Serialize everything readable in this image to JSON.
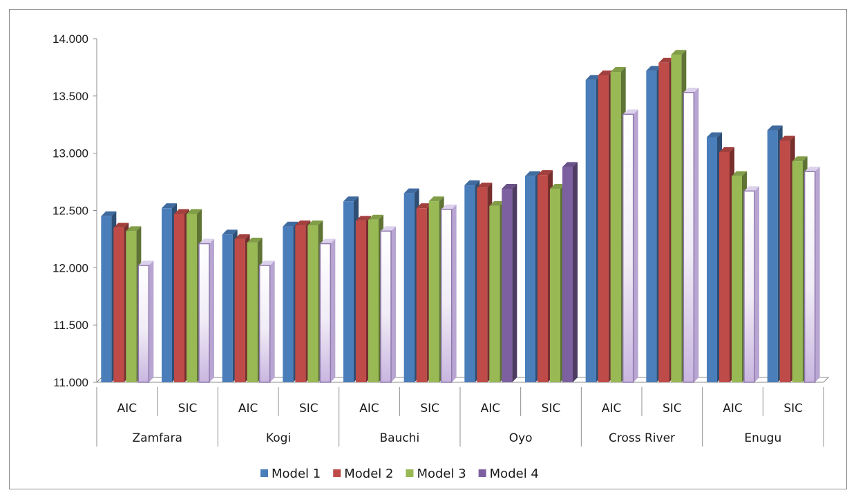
{
  "chart_data": {
    "type": "bar",
    "categories": [
      {
        "state": "Zamfara",
        "criterion": "AIC"
      },
      {
        "state": "Zamfara",
        "criterion": "SIC"
      },
      {
        "state": "Kogi",
        "criterion": "AIC"
      },
      {
        "state": "Kogi",
        "criterion": "SIC"
      },
      {
        "state": "Bauchi",
        "criterion": "AIC"
      },
      {
        "state": "Bauchi",
        "criterion": "SIC"
      },
      {
        "state": "Oyo",
        "criterion": "AIC"
      },
      {
        "state": "Oyo",
        "criterion": "SIC"
      },
      {
        "state": "Cross River",
        "criterion": "AIC"
      },
      {
        "state": "Cross River",
        "criterion": "SIC"
      },
      {
        "state": "Enugu",
        "criterion": "AIC"
      },
      {
        "state": "Enugu",
        "criterion": "SIC"
      }
    ],
    "groups": [
      "Zamfara",
      "Kogi",
      "Bauchi",
      "Oyo",
      "Cross River",
      "Enugu"
    ],
    "series": [
      {
        "name": "Model 1",
        "color": "#4a7ebb",
        "values": [
          12.45,
          12.52,
          12.29,
          12.36,
          12.58,
          12.65,
          12.72,
          12.8,
          13.64,
          13.72,
          13.14,
          13.2
        ]
      },
      {
        "name": "Model 2",
        "color": "#be4b48",
        "values": [
          12.35,
          12.47,
          12.25,
          12.37,
          12.41,
          12.52,
          12.7,
          12.81,
          13.68,
          13.79,
          13.01,
          13.11
        ]
      },
      {
        "name": "Model 3",
        "color": "#98b954",
        "values": [
          12.32,
          12.47,
          12.22,
          12.37,
          12.42,
          12.58,
          12.54,
          12.69,
          13.71,
          13.86,
          12.8,
          12.93
        ]
      },
      {
        "name": "Model 4",
        "color": "#7d60a0",
        "values": [
          12.02,
          12.21,
          12.02,
          12.21,
          12.32,
          12.51,
          12.69,
          12.88,
          13.34,
          13.53,
          12.67,
          12.84
        ],
        "style": [
          "light",
          "light",
          "light",
          "light",
          "light",
          "light",
          "solid",
          "solid",
          "light",
          "light",
          "light",
          "light"
        ]
      }
    ],
    "yticks": [
      "11.000",
      "11.500",
      "12.000",
      "12.500",
      "13.000",
      "13.500",
      "14.000"
    ],
    "ylim": [
      11.0,
      14.0
    ],
    "grid": false,
    "legend": "bottom"
  }
}
